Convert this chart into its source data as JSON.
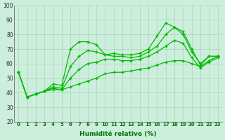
{
  "title": "",
  "xlabel": "Humidité relative (%)",
  "ylabel": "",
  "bg_color": "#cceedd",
  "grid_color": "#aaccaa",
  "line_color": "#00bb00",
  "xlim": [
    -0.5,
    23.5
  ],
  "ylim": [
    20,
    100
  ],
  "yticks": [
    20,
    30,
    40,
    50,
    60,
    70,
    80,
    90,
    100
  ],
  "xticks": [
    0,
    1,
    2,
    3,
    4,
    5,
    6,
    7,
    8,
    9,
    10,
    11,
    12,
    13,
    14,
    15,
    16,
    17,
    18,
    19,
    20,
    21,
    22,
    23
  ],
  "series": [
    [
      54,
      37,
      39,
      41,
      46,
      45,
      70,
      75,
      75,
      73,
      66,
      67,
      66,
      66,
      67,
      70,
      79,
      88,
      85,
      82,
      70,
      59,
      65,
      65
    ],
    [
      54,
      37,
      39,
      41,
      44,
      43,
      58,
      65,
      69,
      68,
      66,
      65,
      65,
      64,
      65,
      68,
      72,
      80,
      85,
      80,
      68,
      60,
      65,
      65
    ],
    [
      54,
      37,
      39,
      41,
      43,
      42,
      50,
      56,
      60,
      61,
      63,
      63,
      62,
      62,
      63,
      65,
      68,
      72,
      76,
      74,
      64,
      57,
      61,
      64
    ],
    [
      54,
      37,
      39,
      41,
      42,
      42,
      44,
      46,
      48,
      50,
      53,
      54,
      54,
      55,
      56,
      57,
      59,
      61,
      62,
      62,
      60,
      58,
      62,
      65
    ]
  ]
}
